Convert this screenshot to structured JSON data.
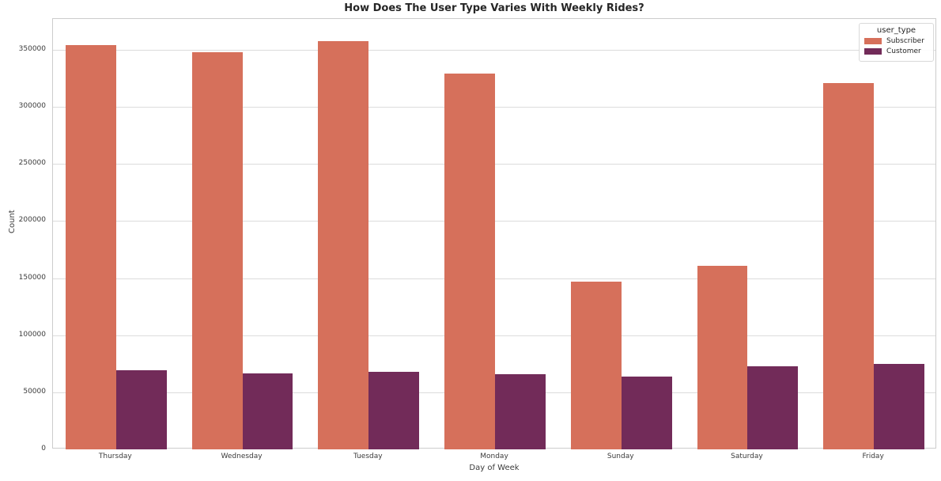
{
  "figure": {
    "title": "How Does The User Type Varies With Weekly Rides?",
    "x_axis_label": "Day of Week",
    "y_axis_label": "Count"
  },
  "legend": {
    "title": "user_type",
    "position": "upper right"
  },
  "style": {
    "subscriber_color": "#d6705b",
    "customer_color": "#722b59",
    "grid_color": "#dcdcdc",
    "spine_color": "#cccccc",
    "text_color": "#3b3b3b",
    "background": "#ffffff"
  },
  "chart_data": {
    "type": "bar",
    "title": "How Does The User Type Varies With Weekly Rides?",
    "xlabel": "Day of Week",
    "ylabel": "Count",
    "categories": [
      "Thursday",
      "Wednesday",
      "Tuesday",
      "Monday",
      "Sunday",
      "Saturday",
      "Friday"
    ],
    "series": [
      {
        "name": "Subscriber",
        "color": "#d6705b",
        "values": [
          354000,
          348000,
          357500,
          329500,
          147000,
          161000,
          321000
        ]
      },
      {
        "name": "Customer",
        "color": "#722b59",
        "values": [
          69500,
          66500,
          68000,
          66000,
          64000,
          72500,
          74500
        ]
      }
    ],
    "ylim": [
      0,
      377000
    ],
    "yticks": [
      0,
      50000,
      100000,
      150000,
      200000,
      250000,
      300000,
      350000
    ],
    "grid": "horizontal",
    "legend_position": "upper right"
  }
}
